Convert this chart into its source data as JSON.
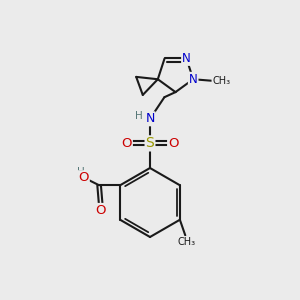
{
  "bg_color": "#ebebeb",
  "bond_color": "#1a1a1a",
  "bond_width": 1.5,
  "atom_colors": {
    "N": "#0000cc",
    "O": "#cc0000",
    "S": "#999900",
    "H": "#557777",
    "C": "#1a1a1a"
  },
  "font_size": 8.5,
  "fig_width": 3.0,
  "fig_height": 3.0,
  "dpi": 100
}
